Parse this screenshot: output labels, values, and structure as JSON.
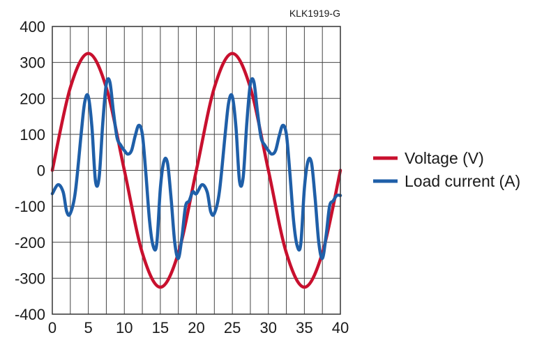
{
  "chart_data": {
    "type": "line",
    "code_label": "KLK1919-G",
    "xlabel": "",
    "ylabel": "",
    "xlim": [
      0,
      40
    ],
    "ylim": [
      -400,
      400
    ],
    "x_ticks": [
      "0",
      "5",
      "10",
      "15",
      "20",
      "25",
      "30",
      "35",
      "40"
    ],
    "y_ticks": [
      "400",
      "300",
      "200",
      "100",
      "0",
      "-100",
      "-200",
      "-300",
      "-400"
    ],
    "grid": true,
    "legend_position": "right",
    "series": [
      {
        "name": "Voltage (V)",
        "color": "#c8102e",
        "x": [
          0,
          2.5,
          5,
          7.5,
          10,
          12.5,
          15,
          17.5,
          20,
          22.5,
          25,
          27.5,
          30,
          32.5,
          35,
          37.5,
          40
        ],
        "y": [
          0,
          230,
          325,
          230,
          0,
          -230,
          -325,
          -230,
          0,
          230,
          325,
          230,
          0,
          -230,
          -325,
          -230,
          0
        ]
      },
      {
        "name": "Load current (A)",
        "color": "#1f5fa8",
        "x": [
          0,
          0.8,
          1.5,
          2.0,
          2.5,
          3.2,
          4.0,
          4.5,
          5.0,
          5.5,
          6.0,
          6.5,
          7.0,
          7.5,
          8.0,
          8.5,
          9.0,
          9.5,
          10.0,
          10.5,
          11.0,
          11.5,
          12.0,
          12.5,
          13.0,
          13.5,
          14.0,
          14.5,
          15.0,
          15.5,
          16.0,
          16.5,
          17.0,
          17.5,
          18.0,
          18.5,
          19.0,
          19.5,
          20.0,
          20.8,
          21.5,
          22.0,
          22.5,
          23.2,
          24.0,
          24.5,
          25.0,
          25.5,
          26.0,
          26.5,
          27.0,
          27.5,
          28.0,
          28.5,
          29.0,
          29.5,
          30.0,
          30.5,
          31.0,
          31.5,
          32.0,
          32.5,
          33.0,
          33.5,
          34.0,
          34.5,
          35.0,
          35.5,
          36.0,
          36.5,
          37.0,
          37.5,
          38.0,
          38.5,
          39.0,
          39.5,
          40.0
        ],
        "y": [
          -65,
          -40,
          -60,
          -115,
          -120,
          -60,
          100,
          190,
          205,
          120,
          -30,
          -20,
          130,
          240,
          245,
          160,
          90,
          70,
          55,
          45,
          55,
          95,
          125,
          100,
          -10,
          -140,
          -210,
          -205,
          -50,
          25,
          20,
          -80,
          -200,
          -245,
          -185,
          -100,
          -85,
          -60,
          -65,
          -40,
          -60,
          -115,
          -120,
          -60,
          100,
          190,
          205,
          120,
          -30,
          -20,
          130,
          240,
          245,
          160,
          90,
          70,
          55,
          45,
          55,
          95,
          125,
          100,
          -10,
          -140,
          -210,
          -205,
          -50,
          25,
          20,
          -80,
          -200,
          -245,
          -185,
          -100,
          -85,
          -70,
          -70
        ]
      }
    ]
  }
}
